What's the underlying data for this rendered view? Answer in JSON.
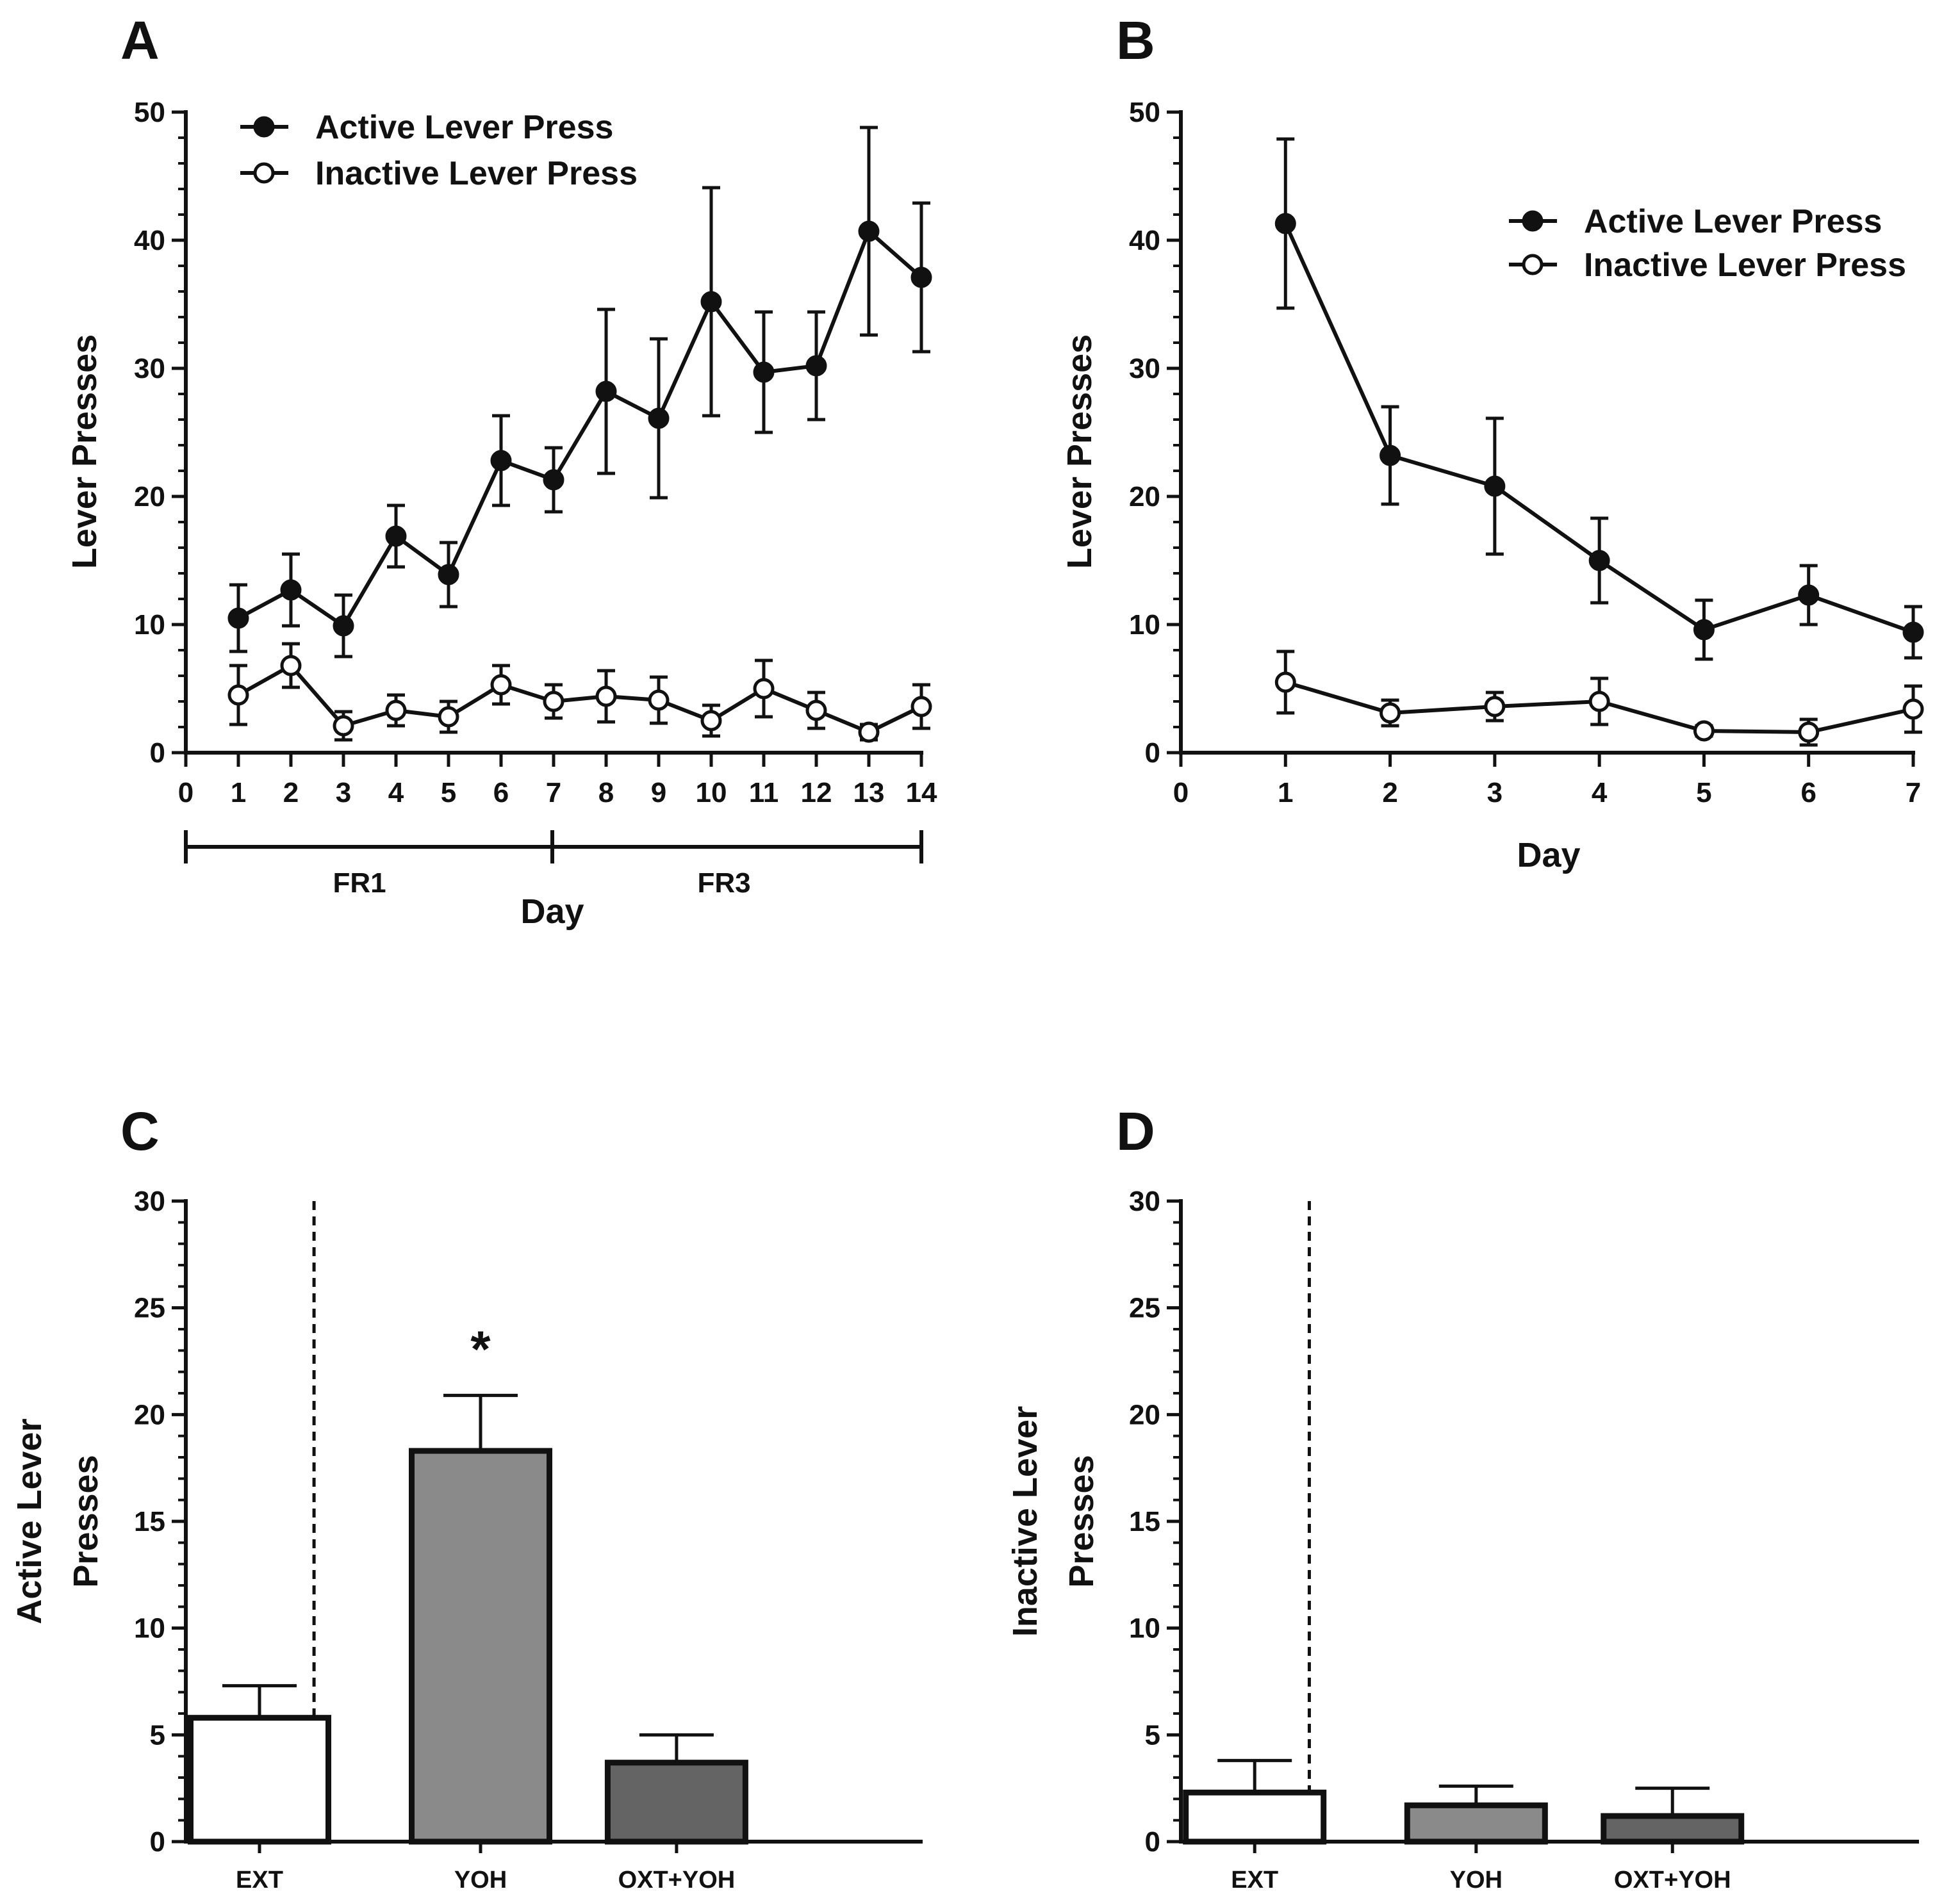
{
  "chart_data": [
    {
      "panel": "A",
      "type": "line",
      "xlabel": "Day",
      "ylabel": "Lever Presses",
      "xlim": [
        0,
        14
      ],
      "ylim": [
        0,
        50
      ],
      "x_ticks": [
        "0",
        "1",
        "2",
        "3",
        "4",
        "5",
        "6",
        "7",
        "8",
        "9",
        "10",
        "11",
        "12",
        "13",
        "14"
      ],
      "y_ticks": [
        "0",
        "10",
        "20",
        "30",
        "40",
        "50"
      ],
      "x": [
        1,
        2,
        3,
        4,
        5,
        6,
        7,
        8,
        9,
        10,
        11,
        12,
        13,
        14
      ],
      "series": [
        {
          "name": "Active Lever Press",
          "marker": "filled-circle",
          "values": [
            10.5,
            12.7,
            9.9,
            16.9,
            13.9,
            22.8,
            21.3,
            28.2,
            26.1,
            35.2,
            29.7,
            30.2,
            40.7,
            37.1
          ],
          "errors": [
            2.6,
            2.8,
            2.4,
            2.4,
            2.5,
            3.5,
            2.5,
            6.4,
            6.2,
            8.9,
            4.7,
            4.2,
            8.1,
            5.8
          ]
        },
        {
          "name": "Inactive Lever Press",
          "marker": "open-circle",
          "values": [
            4.5,
            6.8,
            2.1,
            3.3,
            2.8,
            5.3,
            4.0,
            4.4,
            4.1,
            2.5,
            5.0,
            3.3,
            1.6,
            3.6
          ],
          "errors": [
            2.3,
            1.7,
            1.1,
            1.2,
            1.2,
            1.5,
            1.3,
            2.0,
            1.8,
            1.2,
            2.2,
            1.4,
            0.6,
            1.7
          ]
        }
      ],
      "phases": [
        {
          "label": "FR1",
          "from": 0,
          "to": 7
        },
        {
          "label": "FR3",
          "from": 7,
          "to": 14
        }
      ]
    },
    {
      "panel": "B",
      "type": "line",
      "xlabel": "Day",
      "ylabel": "Lever Presses",
      "xlim": [
        0,
        7
      ],
      "ylim": [
        0,
        50
      ],
      "x_ticks": [
        "0",
        "1",
        "2",
        "3",
        "4",
        "5",
        "6",
        "7"
      ],
      "y_ticks": [
        "0",
        "10",
        "20",
        "30",
        "40",
        "50"
      ],
      "x": [
        1,
        2,
        3,
        4,
        5,
        6,
        7
      ],
      "series": [
        {
          "name": "Active Lever Press",
          "marker": "filled-circle",
          "values": [
            41.3,
            23.2,
            20.8,
            15.0,
            9.6,
            12.3,
            9.4
          ],
          "errors": [
            6.6,
            3.8,
            5.3,
            3.3,
            2.3,
            2.3,
            2.0
          ]
        },
        {
          "name": "Inactive Lever Press",
          "marker": "open-circle",
          "values": [
            5.5,
            3.1,
            3.6,
            4.0,
            1.7,
            1.6,
            3.4
          ],
          "errors": [
            2.4,
            1.0,
            1.1,
            1.8,
            0.4,
            1.0,
            1.8
          ]
        }
      ]
    },
    {
      "panel": "C",
      "type": "bar",
      "ylabel_lines": [
        "Active Lever",
        "Presses"
      ],
      "ylim": [
        0,
        30
      ],
      "y_ticks": [
        "0",
        "5",
        "10",
        "15",
        "20",
        "25",
        "30"
      ],
      "categories": [
        "EXT",
        "YOH",
        "OXT+YOH"
      ],
      "values": [
        5.8,
        18.3,
        3.7
      ],
      "errors": [
        1.5,
        2.6,
        1.3
      ],
      "fills": [
        "#ffffff",
        "#8a8a8a",
        "#646464"
      ],
      "annotations": [
        {
          "category": "YOH",
          "text": "*"
        }
      ]
    },
    {
      "panel": "D",
      "type": "bar",
      "ylabel_lines": [
        "Inactive Lever",
        "Presses"
      ],
      "ylim": [
        0,
        30
      ],
      "y_ticks": [
        "0",
        "5",
        "10",
        "15",
        "20",
        "25",
        "30"
      ],
      "categories": [
        "EXT",
        "YOH",
        "OXT+YOH"
      ],
      "values": [
        2.3,
        1.7,
        1.2
      ],
      "errors": [
        1.5,
        0.9,
        1.3
      ],
      "fills": [
        "#ffffff",
        "#8a8a8a",
        "#646464"
      ]
    }
  ]
}
